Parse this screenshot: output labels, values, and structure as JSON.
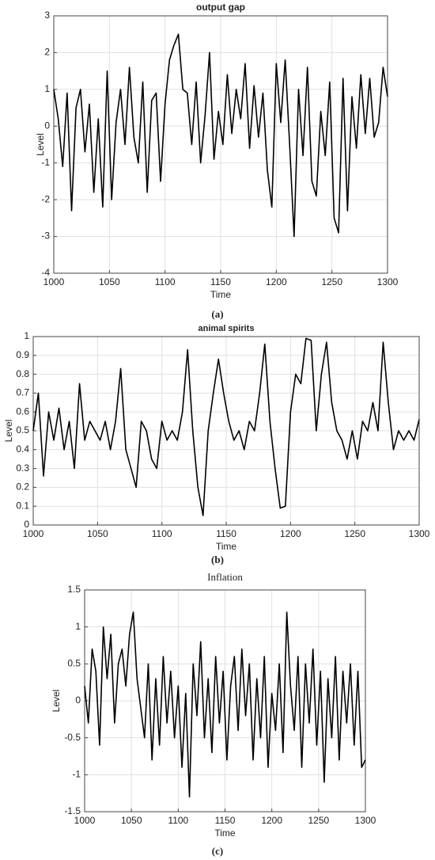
{
  "chart_data": [
    {
      "type": "line",
      "title": "output gap",
      "xlabel": "Time",
      "ylabel": "Level",
      "caption": "(a)",
      "color": "#000000",
      "grid": true,
      "xlim": [
        1000,
        1300
      ],
      "xticks": [
        1000,
        1050,
        1100,
        1150,
        1200,
        1250,
        1300
      ],
      "ylim": [
        -4,
        3
      ],
      "yticks": [
        -4,
        -3,
        -2,
        -1,
        0,
        1,
        2,
        3
      ],
      "x": [
        1000,
        1004,
        1008,
        1012,
        1016,
        1020,
        1024,
        1028,
        1032,
        1036,
        1040,
        1044,
        1048,
        1052,
        1056,
        1060,
        1064,
        1068,
        1072,
        1076,
        1080,
        1084,
        1088,
        1092,
        1096,
        1100,
        1104,
        1108,
        1112,
        1116,
        1120,
        1124,
        1128,
        1132,
        1136,
        1140,
        1144,
        1148,
        1152,
        1156,
        1160,
        1164,
        1168,
        1172,
        1176,
        1180,
        1184,
        1188,
        1192,
        1196,
        1200,
        1204,
        1208,
        1212,
        1216,
        1220,
        1224,
        1228,
        1232,
        1236,
        1240,
        1244,
        1248,
        1252,
        1256,
        1260,
        1264,
        1268,
        1272,
        1276,
        1280,
        1284,
        1288,
        1292,
        1296,
        1300
      ],
      "values": [
        1.0,
        0.2,
        -1.1,
        0.9,
        -2.3,
        0.5,
        1.0,
        -0.7,
        0.6,
        -1.8,
        0.2,
        -2.2,
        1.5,
        -2.0,
        0.1,
        1.0,
        -0.5,
        1.6,
        -0.3,
        -1.0,
        1.2,
        -1.8,
        0.7,
        0.9,
        -1.5,
        0.6,
        1.8,
        2.2,
        2.5,
        1.0,
        0.9,
        -0.5,
        1.2,
        -1.0,
        0.3,
        2.0,
        -0.9,
        0.4,
        -0.5,
        1.4,
        -0.2,
        1.0,
        0.2,
        1.7,
        -0.6,
        1.1,
        -0.3,
        0.9,
        -1.2,
        -2.2,
        1.7,
        0.1,
        1.8,
        -0.5,
        -3.0,
        1.0,
        -0.8,
        1.6,
        -1.5,
        -1.9,
        0.4,
        -0.8,
        1.2,
        -2.5,
        -2.9,
        1.3,
        -2.3,
        0.8,
        -0.6,
        1.4,
        -0.2,
        1.3,
        -0.3,
        0.1,
        1.6,
        0.8
      ]
    },
    {
      "type": "line",
      "title": "animal spirits",
      "xlabel": "Time",
      "ylabel": "Level",
      "caption": "(b)",
      "color": "#000000",
      "grid": true,
      "xlim": [
        1000,
        1300
      ],
      "xticks": [
        1000,
        1050,
        1100,
        1150,
        1200,
        1250,
        1300
      ],
      "ylim": [
        0,
        1
      ],
      "yticks": [
        0,
        0.1,
        0.2,
        0.3,
        0.4,
        0.5,
        0.6,
        0.7,
        0.8,
        0.9,
        1
      ],
      "x": [
        1000,
        1004,
        1008,
        1012,
        1016,
        1020,
        1024,
        1028,
        1032,
        1036,
        1040,
        1044,
        1048,
        1052,
        1056,
        1060,
        1064,
        1068,
        1072,
        1076,
        1080,
        1084,
        1088,
        1092,
        1096,
        1100,
        1104,
        1108,
        1112,
        1116,
        1120,
        1124,
        1128,
        1132,
        1136,
        1140,
        1144,
        1148,
        1152,
        1156,
        1160,
        1164,
        1168,
        1172,
        1176,
        1180,
        1184,
        1188,
        1192,
        1196,
        1200,
        1204,
        1208,
        1212,
        1216,
        1220,
        1224,
        1228,
        1232,
        1236,
        1240,
        1244,
        1248,
        1252,
        1256,
        1260,
        1264,
        1268,
        1272,
        1276,
        1280,
        1284,
        1288,
        1292,
        1296,
        1300
      ],
      "values": [
        0.5,
        0.7,
        0.26,
        0.6,
        0.45,
        0.62,
        0.4,
        0.55,
        0.3,
        0.75,
        0.45,
        0.55,
        0.5,
        0.45,
        0.55,
        0.4,
        0.55,
        0.83,
        0.4,
        0.3,
        0.2,
        0.55,
        0.5,
        0.35,
        0.3,
        0.55,
        0.45,
        0.5,
        0.45,
        0.6,
        0.93,
        0.5,
        0.2,
        0.05,
        0.5,
        0.7,
        0.88,
        0.7,
        0.55,
        0.45,
        0.5,
        0.4,
        0.55,
        0.5,
        0.7,
        0.96,
        0.55,
        0.3,
        0.09,
        0.1,
        0.6,
        0.8,
        0.75,
        0.99,
        0.98,
        0.5,
        0.8,
        0.97,
        0.65,
        0.5,
        0.45,
        0.35,
        0.5,
        0.35,
        0.55,
        0.5,
        0.65,
        0.5,
        0.97,
        0.65,
        0.4,
        0.5,
        0.45,
        0.5,
        0.45,
        0.56
      ]
    },
    {
      "type": "line",
      "title": "Inflation",
      "xlabel": "Time",
      "ylabel": "Level",
      "caption": "(c)",
      "color": "#000000",
      "grid": true,
      "xlim": [
        1000,
        1300
      ],
      "xticks": [
        1000,
        1050,
        1100,
        1150,
        1200,
        1250,
        1300
      ],
      "ylim": [
        -1.5,
        1.5
      ],
      "yticks": [
        -1.5,
        -1,
        -0.5,
        0,
        0.5,
        1,
        1.5
      ],
      "x": [
        1000,
        1004,
        1008,
        1012,
        1016,
        1020,
        1024,
        1028,
        1032,
        1036,
        1040,
        1044,
        1048,
        1052,
        1056,
        1060,
        1064,
        1068,
        1072,
        1076,
        1080,
        1084,
        1088,
        1092,
        1096,
        1100,
        1104,
        1108,
        1112,
        1116,
        1120,
        1124,
        1128,
        1132,
        1136,
        1140,
        1144,
        1148,
        1152,
        1156,
        1160,
        1164,
        1168,
        1172,
        1176,
        1180,
        1184,
        1188,
        1192,
        1196,
        1200,
        1204,
        1208,
        1212,
        1216,
        1220,
        1224,
        1228,
        1232,
        1236,
        1240,
        1244,
        1248,
        1252,
        1256,
        1260,
        1264,
        1268,
        1272,
        1276,
        1280,
        1284,
        1288,
        1292,
        1296,
        1300
      ],
      "values": [
        0.2,
        -0.3,
        0.7,
        0.4,
        -0.6,
        1.0,
        0.3,
        0.9,
        -0.3,
        0.5,
        0.7,
        0.2,
        0.9,
        1.2,
        0.3,
        -0.1,
        -0.5,
        0.5,
        -0.8,
        0.3,
        -0.6,
        0.6,
        -0.3,
        0.4,
        -0.5,
        0.2,
        -0.9,
        0.1,
        -1.3,
        0.5,
        -0.2,
        0.8,
        -0.5,
        0.3,
        -0.7,
        0.6,
        -0.3,
        0.4,
        -0.8,
        0.2,
        0.6,
        -0.4,
        0.7,
        -0.2,
        0.5,
        -0.8,
        0.3,
        -0.5,
        0.6,
        -0.9,
        0.1,
        -0.4,
        0.5,
        -0.7,
        1.2,
        0.2,
        -0.4,
        0.6,
        -0.9,
        0.5,
        -0.3,
        0.7,
        -0.6,
        0.4,
        -1.1,
        0.3,
        -0.5,
        0.6,
        -0.8,
        0.4,
        -0.3,
        0.5,
        -0.6,
        0.4,
        -0.9,
        -0.8
      ]
    }
  ]
}
